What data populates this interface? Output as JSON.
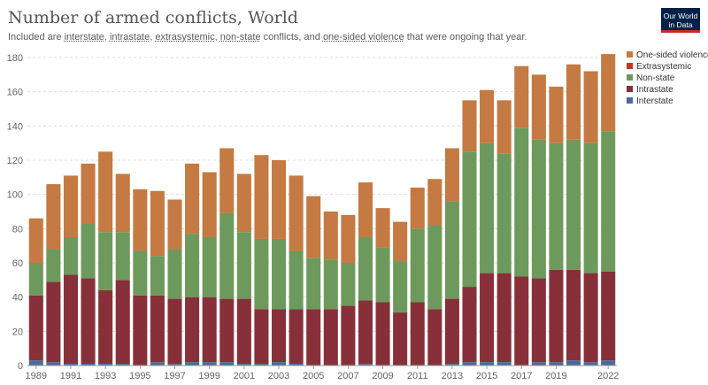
{
  "header": {
    "title": "Number of armed conflicts, World",
    "subtitle_parts": [
      "Included are ",
      "interstate",
      ", ",
      "intrastate",
      ", ",
      "extrasystemic",
      ", ",
      "non-state",
      " conflicts, and ",
      "one-sided violence",
      " that were ongoing that year."
    ],
    "logo_line1": "Our World",
    "logo_line2": "in Data"
  },
  "chart_data": {
    "type": "bar",
    "stacked": true,
    "title": "Number of armed conflicts, World",
    "x": [
      1989,
      1990,
      1991,
      1992,
      1993,
      1994,
      1995,
      1996,
      1997,
      1998,
      1999,
      2000,
      2001,
      2002,
      2003,
      2004,
      2005,
      2006,
      2007,
      2008,
      2009,
      2010,
      2011,
      2012,
      2013,
      2014,
      2015,
      2016,
      2017,
      2018,
      2019,
      2020,
      2021,
      2022
    ],
    "x_tick_labels": [
      "1989",
      "1991",
      "1993",
      "1995",
      "1997",
      "1999",
      "2001",
      "2003",
      "2005",
      "2007",
      "2009",
      "2011",
      "2013",
      "2015",
      "2017",
      "2019",
      "2022"
    ],
    "ylim": [
      0,
      180
    ],
    "y_ticks": [
      0,
      20,
      40,
      60,
      80,
      100,
      120,
      140,
      160,
      180
    ],
    "grid": true,
    "legend_position": "top-right",
    "series": [
      {
        "name": "Interstate",
        "color": "#4c6a9c",
        "values": [
          3,
          2,
          1,
          1,
          1,
          1,
          0,
          2,
          1,
          2,
          2,
          2,
          1,
          1,
          2,
          1,
          0,
          0,
          0,
          1,
          0,
          0,
          0,
          0,
          1,
          2,
          2,
          2,
          0,
          2,
          2,
          3,
          2,
          3
        ]
      },
      {
        "name": "Intrastate",
        "color": "#883039",
        "values": [
          38,
          47,
          52,
          50,
          43,
          49,
          41,
          39,
          38,
          38,
          38,
          37,
          38,
          32,
          31,
          32,
          33,
          33,
          35,
          37,
          37,
          31,
          37,
          33,
          38,
          44,
          52,
          52,
          52,
          49,
          54,
          53,
          52,
          52
        ]
      },
      {
        "name": "Extrasystemic",
        "color": "#c43728",
        "values": [
          0,
          0,
          0,
          0,
          0,
          0,
          0,
          0,
          0,
          0,
          0,
          0,
          0,
          0,
          0,
          0,
          0,
          0,
          0,
          0,
          0,
          0,
          0,
          0,
          0,
          0,
          0,
          0,
          0,
          0,
          0,
          0,
          0,
          0
        ]
      },
      {
        "name": "Non-state",
        "color": "#6d9a5c",
        "values": [
          19,
          19,
          22,
          32,
          34,
          28,
          26,
          23,
          29,
          37,
          35,
          50,
          39,
          41,
          41,
          34,
          30,
          29,
          25,
          37,
          32,
          30,
          43,
          49,
          57,
          79,
          76,
          70,
          87,
          81,
          74,
          76,
          76,
          82
        ]
      },
      {
        "name": "One-sided violence",
        "color": "#c47a42",
        "values": [
          26,
          38,
          36,
          35,
          47,
          34,
          36,
          38,
          29,
          41,
          38,
          38,
          34,
          49,
          46,
          44,
          36,
          28,
          28,
          32,
          23,
          23,
          24,
          27,
          31,
          30,
          31,
          31,
          36,
          38,
          33,
          44,
          42,
          45
        ]
      }
    ],
    "legend_order": [
      "One-sided violence",
      "Extrasystemic",
      "Non-state",
      "Intrastate",
      "Interstate"
    ]
  }
}
